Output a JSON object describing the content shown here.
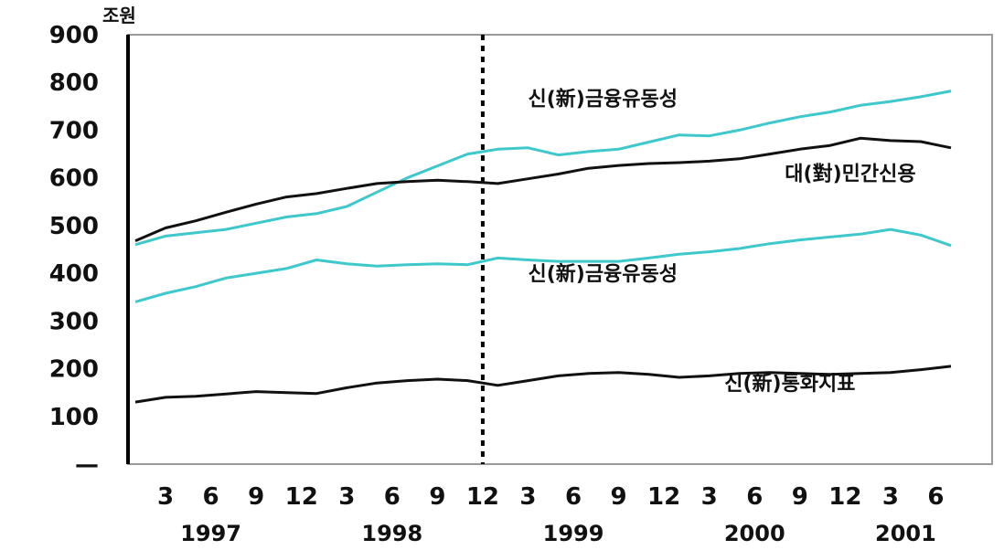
{
  "chart_data": {
    "type": "line",
    "y_unit_label": "조원",
    "ylim": [
      0,
      900
    ],
    "yticks": [
      {
        "v": 0,
        "label": "—"
      },
      {
        "v": 100,
        "label": "100"
      },
      {
        "v": 200,
        "label": "200"
      },
      {
        "v": 300,
        "label": "300"
      },
      {
        "v": 400,
        "label": "400"
      },
      {
        "v": 500,
        "label": "500"
      },
      {
        "v": 600,
        "label": "600"
      },
      {
        "v": 700,
        "label": "700"
      },
      {
        "v": 800,
        "label": "800"
      },
      {
        "v": 900,
        "label": "900"
      }
    ],
    "month_ticks": [
      {
        "i": 2,
        "label": "3"
      },
      {
        "i": 5,
        "label": "6"
      },
      {
        "i": 8,
        "label": "9"
      },
      {
        "i": 11,
        "label": "12"
      },
      {
        "i": 14,
        "label": "3"
      },
      {
        "i": 17,
        "label": "6"
      },
      {
        "i": 20,
        "label": "9"
      },
      {
        "i": 23,
        "label": "12"
      },
      {
        "i": 26,
        "label": "3"
      },
      {
        "i": 29,
        "label": "6"
      },
      {
        "i": 32,
        "label": "9"
      },
      {
        "i": 35,
        "label": "12"
      },
      {
        "i": 38,
        "label": "3"
      },
      {
        "i": 41,
        "label": "6"
      },
      {
        "i": 44,
        "label": "9"
      },
      {
        "i": 47,
        "label": "12"
      },
      {
        "i": 50,
        "label": "3"
      },
      {
        "i": 53,
        "label": "6"
      }
    ],
    "year_labels": [
      {
        "i": 5,
        "label": "1997"
      },
      {
        "i": 17,
        "label": "1998"
      },
      {
        "i": 29,
        "label": "1999"
      },
      {
        "i": 41,
        "label": "2000"
      },
      {
        "i": 51,
        "label": "2001"
      }
    ],
    "x_range": [
      0,
      54
    ],
    "divider_index": 23,
    "series": [
      {
        "name": "신(新)금융유동성",
        "color": "#3ec8cc",
        "label_at": {
          "i": 26,
          "v": 752
        },
        "points": [
          [
            0,
            460
          ],
          [
            2,
            478
          ],
          [
            4,
            485
          ],
          [
            6,
            492
          ],
          [
            8,
            505
          ],
          [
            10,
            518
          ],
          [
            12,
            525
          ],
          [
            14,
            540
          ],
          [
            16,
            570
          ],
          [
            18,
            600
          ],
          [
            20,
            625
          ],
          [
            22,
            650
          ],
          [
            24,
            660
          ],
          [
            26,
            663
          ],
          [
            28,
            648
          ],
          [
            30,
            655
          ],
          [
            32,
            660
          ],
          [
            34,
            675
          ],
          [
            36,
            690
          ],
          [
            38,
            688
          ],
          [
            40,
            700
          ],
          [
            42,
            715
          ],
          [
            44,
            728
          ],
          [
            46,
            738
          ],
          [
            48,
            752
          ],
          [
            50,
            760
          ],
          [
            52,
            770
          ],
          [
            54,
            782
          ]
        ]
      },
      {
        "name": "대(對)민간신용",
        "color": "#111111",
        "label_at": {
          "i": 43,
          "v": 595
        },
        "points": [
          [
            0,
            468
          ],
          [
            2,
            495
          ],
          [
            4,
            510
          ],
          [
            6,
            528
          ],
          [
            8,
            545
          ],
          [
            10,
            560
          ],
          [
            12,
            567
          ],
          [
            14,
            578
          ],
          [
            16,
            588
          ],
          [
            18,
            592
          ],
          [
            20,
            595
          ],
          [
            22,
            592
          ],
          [
            24,
            588
          ],
          [
            26,
            598
          ],
          [
            28,
            608
          ],
          [
            30,
            620
          ],
          [
            32,
            626
          ],
          [
            34,
            630
          ],
          [
            36,
            632
          ],
          [
            38,
            635
          ],
          [
            40,
            640
          ],
          [
            42,
            650
          ],
          [
            44,
            660
          ],
          [
            46,
            668
          ],
          [
            48,
            683
          ],
          [
            50,
            678
          ],
          [
            52,
            676
          ],
          [
            54,
            663
          ]
        ]
      },
      {
        "name": "신(新)금융유동성",
        "color": "#3ec8cc",
        "label_at": {
          "i": 26,
          "v": 385
        },
        "points": [
          [
            0,
            340
          ],
          [
            2,
            358
          ],
          [
            4,
            372
          ],
          [
            6,
            390
          ],
          [
            8,
            400
          ],
          [
            10,
            410
          ],
          [
            12,
            428
          ],
          [
            14,
            420
          ],
          [
            16,
            415
          ],
          [
            18,
            418
          ],
          [
            20,
            420
          ],
          [
            22,
            418
          ],
          [
            24,
            432
          ],
          [
            26,
            428
          ],
          [
            28,
            425
          ],
          [
            30,
            425
          ],
          [
            32,
            425
          ],
          [
            34,
            432
          ],
          [
            36,
            440
          ],
          [
            38,
            445
          ],
          [
            40,
            452
          ],
          [
            42,
            462
          ],
          [
            44,
            470
          ],
          [
            46,
            476
          ],
          [
            48,
            482
          ],
          [
            50,
            492
          ],
          [
            52,
            480
          ],
          [
            54,
            458
          ]
        ]
      },
      {
        "name": "신(新)통화지표",
        "color": "#111111",
        "label_at": {
          "i": 39,
          "v": 155
        },
        "points": [
          [
            0,
            130
          ],
          [
            2,
            140
          ],
          [
            4,
            142
          ],
          [
            6,
            147
          ],
          [
            8,
            152
          ],
          [
            10,
            150
          ],
          [
            12,
            148
          ],
          [
            14,
            160
          ],
          [
            16,
            170
          ],
          [
            18,
            175
          ],
          [
            20,
            178
          ],
          [
            22,
            175
          ],
          [
            24,
            165
          ],
          [
            26,
            175
          ],
          [
            28,
            185
          ],
          [
            30,
            190
          ],
          [
            32,
            192
          ],
          [
            34,
            188
          ],
          [
            36,
            182
          ],
          [
            38,
            185
          ],
          [
            40,
            190
          ],
          [
            42,
            192
          ],
          [
            44,
            190
          ],
          [
            46,
            188
          ],
          [
            48,
            190
          ],
          [
            50,
            192
          ],
          [
            52,
            198
          ],
          [
            54,
            205
          ]
        ]
      }
    ]
  }
}
